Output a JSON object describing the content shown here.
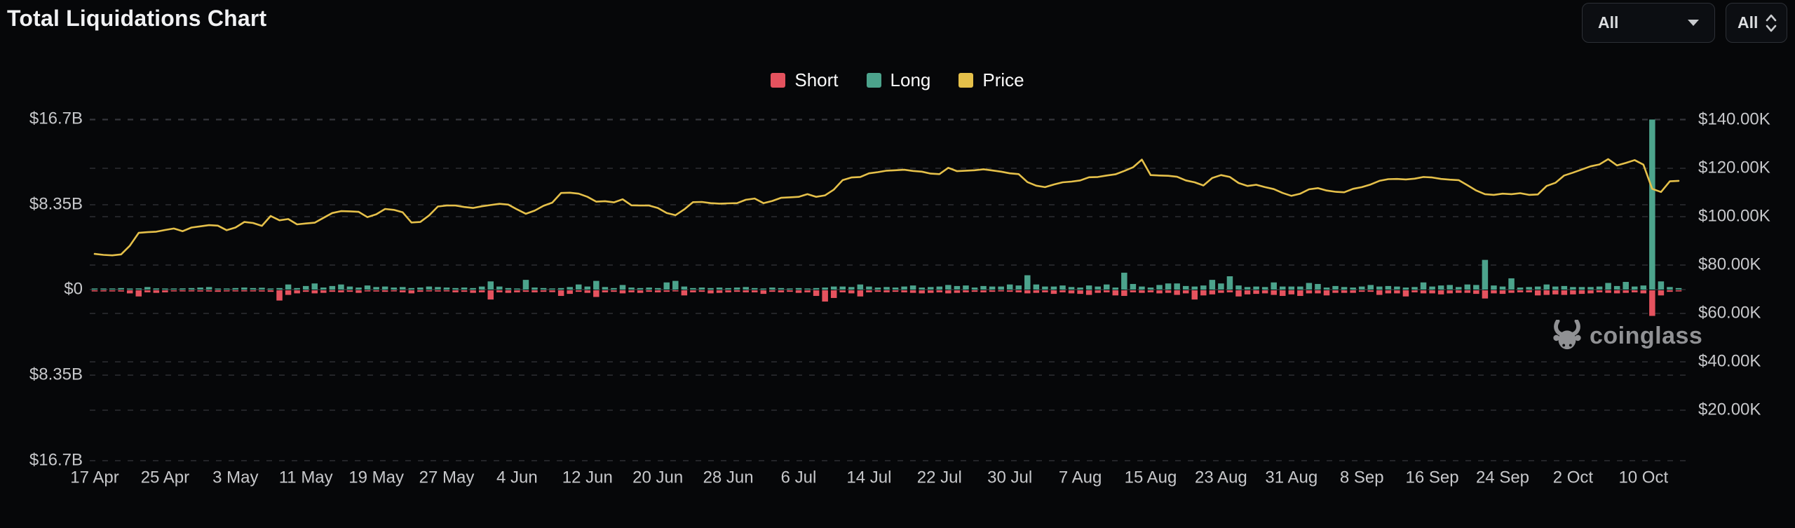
{
  "header": {
    "title": "Total Liquidations Chart"
  },
  "controls": {
    "interval_dropdown": {
      "value": "All"
    },
    "symbol_dropdown": {
      "value": "All"
    }
  },
  "legend": {
    "short": {
      "label": "Short",
      "color": "#e4525e"
    },
    "long": {
      "label": "Long",
      "color": "#4ca38c"
    },
    "price": {
      "label": "Price",
      "color": "#e5c04a"
    }
  },
  "watermark": {
    "text": "coinglass"
  },
  "chart_data": {
    "type": "bar-line-combo",
    "title": "Total Liquidations Chart",
    "legend_position": "top-center",
    "grid": "dashed-horizontal",
    "left_axis": {
      "unit": "USD billions (liquidations, mirrored)",
      "labels": [
        "$16.7B",
        "$8.35B",
        "$0",
        "$8.35B",
        "$16.7B"
      ],
      "values": [
        16.7,
        8.35,
        0,
        -8.35,
        -16.7
      ]
    },
    "right_axis": {
      "unit": "Price USD thousands",
      "labels": [
        "$140.00K",
        "$120.00K",
        "$100.00K",
        "$80.00K",
        "$60.00K",
        "$40.00K",
        "$20.00K"
      ],
      "values": [
        140,
        120,
        100,
        80,
        60,
        40,
        20
      ]
    },
    "x_tick_labels": [
      "17 Apr",
      "25 Apr",
      "3 May",
      "11 May",
      "19 May",
      "27 May",
      "4 Jun",
      "12 Jun",
      "20 Jun",
      "28 Jun",
      "6 Jul",
      "14 Jul",
      "22 Jul",
      "30 Jul",
      "7 Aug",
      "15 Aug",
      "23 Aug",
      "31 Aug",
      "8 Sep",
      "16 Sep",
      "24 Sep",
      "2 Oct",
      "10 Oct"
    ],
    "x_tick_interval_days": 8,
    "start_date": "17 Apr",
    "end_date": "14 Oct",
    "series": {
      "long_B": [
        0.05,
        0.04,
        0.05,
        0.15,
        0.1,
        0.12,
        0.25,
        0.12,
        0.1,
        0.08,
        0.12,
        0.15,
        0.2,
        0.25,
        0.1,
        0.05,
        0.15,
        0.2,
        0.15,
        0.18,
        0.1,
        0.15,
        0.5,
        0.15,
        0.35,
        0.6,
        0.2,
        0.35,
        0.5,
        0.3,
        0.2,
        0.4,
        0.25,
        0.3,
        0.2,
        0.25,
        0.15,
        0.2,
        0.3,
        0.25,
        0.2,
        0.15,
        0.2,
        0.15,
        0.3,
        0.8,
        0.3,
        0.15,
        0.1,
        0.95,
        0.2,
        0.15,
        0.1,
        0.15,
        0.25,
        0.5,
        0.3,
        0.85,
        0.25,
        0.15,
        0.45,
        0.2,
        0.15,
        0.2,
        0.15,
        0.7,
        0.85,
        0.3,
        0.15,
        0.2,
        0.15,
        0.2,
        0.15,
        0.2,
        0.25,
        0.15,
        0.1,
        0.2,
        0.15,
        0.1,
        0.15,
        0.1,
        0.15,
        0.2,
        0.3,
        0.3,
        0.25,
        0.5,
        0.3,
        0.2,
        0.25,
        0.2,
        0.3,
        0.4,
        0.2,
        0.25,
        0.3,
        0.45,
        0.35,
        0.4,
        0.2,
        0.35,
        0.3,
        0.3,
        0.5,
        0.4,
        1.4,
        0.5,
        0.3,
        0.3,
        0.4,
        0.25,
        0.2,
        0.4,
        0.3,
        0.5,
        0.2,
        1.65,
        0.55,
        0.3,
        0.2,
        0.45,
        0.6,
        0.6,
        0.35,
        0.3,
        0.4,
        0.95,
        0.6,
        1.3,
        0.4,
        0.25,
        0.3,
        0.25,
        0.7,
        0.3,
        0.3,
        0.3,
        0.65,
        0.55,
        0.2,
        0.35,
        0.25,
        0.2,
        0.3,
        0.45,
        0.3,
        0.35,
        0.3,
        0.2,
        0.25,
        0.7,
        0.3,
        0.4,
        0.45,
        0.25,
        0.5,
        0.45,
        2.9,
        0.4,
        0.3,
        1.1,
        0.2,
        0.25,
        0.3,
        0.5,
        0.3,
        0.35,
        0.25,
        0.25,
        0.25,
        0.3,
        0.65,
        0.35,
        0.75,
        0.3,
        0.4,
        16.6,
        0.8,
        0.25,
        0.15
      ],
      "short_B": [
        0.1,
        0.08,
        0.08,
        0.12,
        0.3,
        0.6,
        0.2,
        0.25,
        0.2,
        0.1,
        0.1,
        0.1,
        0.12,
        0.12,
        0.15,
        0.1,
        0.05,
        0.08,
        0.1,
        0.12,
        0.15,
        1.0,
        0.45,
        0.3,
        0.15,
        0.3,
        0.25,
        0.15,
        0.2,
        0.15,
        0.25,
        0.1,
        0.12,
        0.15,
        0.1,
        0.2,
        0.3,
        0.15,
        0.1,
        0.12,
        0.1,
        0.2,
        0.15,
        0.25,
        0.2,
        0.9,
        0.2,
        0.25,
        0.2,
        0.15,
        0.2,
        0.15,
        0.18,
        0.55,
        0.35,
        0.15,
        0.25,
        0.65,
        0.2,
        0.15,
        0.3,
        0.2,
        0.25,
        0.15,
        0.2,
        0.15,
        0.1,
        0.5,
        0.2,
        0.15,
        0.3,
        0.25,
        0.2,
        0.15,
        0.2,
        0.2,
        0.35,
        0.15,
        0.2,
        0.15,
        0.25,
        0.2,
        0.55,
        1.1,
        0.75,
        0.2,
        0.3,
        0.6,
        0.2,
        0.15,
        0.2,
        0.15,
        0.2,
        0.25,
        0.3,
        0.25,
        0.2,
        0.3,
        0.25,
        0.2,
        0.15,
        0.2,
        0.15,
        0.1,
        0.15,
        0.2,
        0.3,
        0.25,
        0.2,
        0.35,
        0.2,
        0.3,
        0.35,
        0.45,
        0.25,
        0.2,
        0.5,
        0.55,
        0.2,
        0.25,
        0.2,
        0.3,
        0.25,
        0.45,
        0.3,
        0.9,
        0.5,
        0.4,
        0.25,
        0.2,
        0.6,
        0.4,
        0.35,
        0.3,
        0.45,
        0.55,
        0.4,
        0.55,
        0.3,
        0.3,
        0.5,
        0.25,
        0.25,
        0.25,
        0.15,
        0.15,
        0.45,
        0.3,
        0.3,
        0.6,
        0.2,
        0.3,
        0.3,
        0.4,
        0.3,
        0.25,
        0.25,
        0.35,
        0.8,
        0.3,
        0.35,
        0.25,
        0.2,
        0.2,
        0.5,
        0.45,
        0.4,
        0.45,
        0.4,
        0.35,
        0.3,
        0.2,
        0.25,
        0.3,
        0.25,
        0.2,
        0.3,
        2.5,
        0.5,
        0.15,
        0.1
      ],
      "price_K": [
        84.6,
        84.2,
        84.0,
        84.4,
        88.0,
        93.3,
        93.6,
        93.8,
        94.5,
        95.1,
        94.0,
        95.5,
        96.0,
        96.5,
        96.3,
        94.4,
        95.5,
        97.8,
        97.4,
        96.2,
        100.3,
        98.5,
        99.0,
        96.8,
        97.2,
        97.5,
        99.5,
        101.5,
        102.3,
        102.2,
        102.0,
        99.8,
        101.0,
        103.2,
        102.8,
        101.8,
        97.6,
        97.8,
        100.5,
        104.2,
        104.6,
        104.6,
        104.0,
        103.6,
        104.3,
        104.8,
        105.3,
        105.0,
        103.0,
        101.2,
        102.5,
        104.5,
        105.8,
        109.8,
        109.9,
        109.5,
        108.2,
        106.2,
        106.4,
        105.9,
        107.2,
        104.7,
        104.6,
        104.6,
        103.6,
        101.5,
        100.6,
        103.0,
        106.0,
        106.1,
        105.6,
        105.4,
        105.5,
        105.6,
        107.0,
        107.5,
        105.6,
        106.5,
        107.8,
        108.0,
        108.2,
        109.3,
        108.2,
        108.8,
        111.2,
        115.1,
        116.2,
        116.4,
        117.9,
        118.4,
        119.0,
        119.2,
        119.4,
        118.9,
        118.6,
        117.8,
        117.6,
        120.2,
        118.8,
        119.0,
        119.2,
        119.6,
        119.1,
        118.6,
        117.9,
        117.6,
        114.3,
        112.8,
        112.2,
        113.3,
        114.2,
        114.5,
        115.0,
        116.3,
        116.4,
        117.0,
        117.5,
        118.9,
        120.4,
        123.6,
        117.2,
        117.0,
        116.9,
        116.5,
        115.0,
        114.2,
        112.9,
        116.0,
        117.2,
        116.4,
        113.9,
        112.7,
        113.2,
        112.2,
        111.4,
        109.8,
        108.6,
        109.5,
        111.3,
        111.8,
        110.8,
        110.3,
        110.1,
        111.5,
        112.2,
        113.3,
        114.8,
        115.5,
        115.6,
        115.4,
        115.7,
        116.4,
        116.2,
        115.6,
        115.3,
        115.1,
        113.0,
        110.8,
        109.3,
        109.0,
        109.5,
        109.3,
        109.7,
        109.0,
        109.2,
        112.7,
        114.0,
        117.0,
        118.2,
        119.5,
        120.8,
        121.6,
        123.8,
        121.2,
        122.2,
        123.4,
        121.5,
        111.5,
        110.2,
        114.6,
        114.8
      ]
    },
    "colors": {
      "short": "#e4525e",
      "long": "#4ca38c",
      "price": "#e5c04a",
      "grid": "#35373c",
      "axis_text": "#c7c8cb"
    },
    "notes": "Largest bar: Long ~$16.6B with Short ~$2.5B on 11 Oct; price crashes ~$123K to ~$110K there."
  }
}
